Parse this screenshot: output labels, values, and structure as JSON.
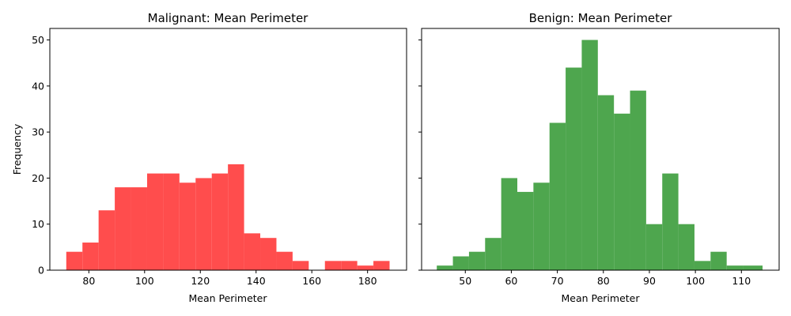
{
  "chart_data": [
    {
      "type": "bar",
      "title": "Malignant: Mean Perimeter",
      "xlabel": "Mean Perimeter",
      "ylabel": "Frequency",
      "color": "#ff4d4d",
      "xlim": [
        66,
        194
      ],
      "ylim": [
        0,
        52.5
      ],
      "xticks": [
        80,
        100,
        120,
        140,
        160,
        180
      ],
      "yticks": [
        0,
        10,
        20,
        30,
        40,
        50
      ],
      "bin_edges": [
        71.9,
        77.7,
        83.5,
        89.3,
        95.1,
        100.9,
        106.7,
        112.5,
        118.3,
        124.1,
        129.9,
        135.7,
        141.5,
        147.3,
        153.1,
        158.9,
        164.7,
        170.5,
        176.3,
        182.1,
        187.9
      ],
      "values": [
        4,
        6,
        13,
        18,
        18,
        21,
        21,
        19,
        20,
        21,
        23,
        8,
        7,
        4,
        2,
        0,
        2,
        2,
        1,
        2
      ]
    },
    {
      "type": "bar",
      "title": "Benign: Mean Perimeter",
      "xlabel": "Mean Perimeter",
      "ylabel": "",
      "color": "#4ea64e",
      "xlim": [
        40.5,
        118.2
      ],
      "ylim": [
        0,
        52.5
      ],
      "xticks": [
        50,
        60,
        70,
        80,
        90,
        100,
        110
      ],
      "yticks": [
        0,
        10,
        20,
        30,
        40,
        50
      ],
      "bin_edges": [
        43.8,
        47.3,
        50.8,
        54.3,
        57.8,
        61.3,
        64.8,
        68.3,
        71.8,
        75.3,
        78.8,
        82.3,
        85.8,
        89.3,
        92.8,
        96.3,
        99.8,
        103.3,
        106.8,
        110.3,
        114.6
      ],
      "values": [
        1,
        3,
        4,
        7,
        20,
        17,
        19,
        32,
        44,
        50,
        38,
        34,
        39,
        10,
        21,
        10,
        2,
        4,
        1,
        1
      ]
    }
  ]
}
